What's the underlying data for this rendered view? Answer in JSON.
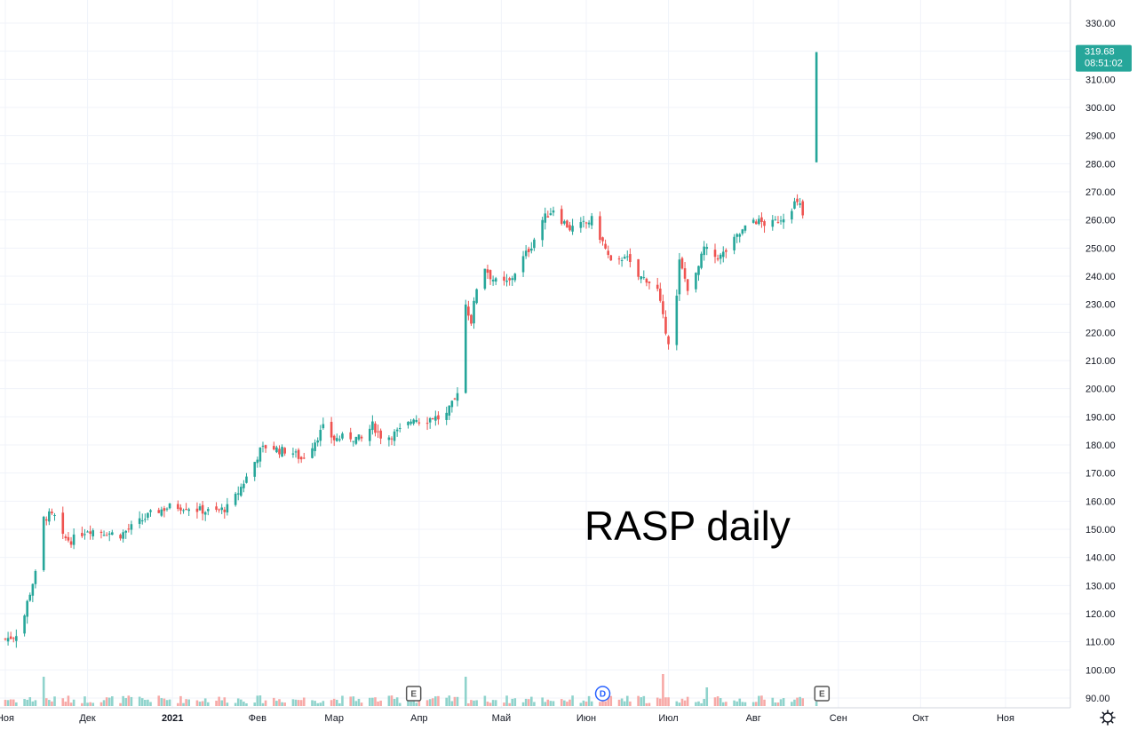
{
  "chart_data": {
    "type": "candlestick",
    "annotation": "RASP daily",
    "colors": {
      "up": "#26a69a",
      "down": "#ef5350",
      "up_volume": "#8fd3cc",
      "down_volume": "#f7a9a7",
      "grid": "#f0f3fa",
      "axis_line": "#d1d4dc",
      "price_label_bg": "#26a69a",
      "earnings_badge": "#555555",
      "dividend_badge": "#2962ff"
    },
    "price_axis": {
      "ylim": [
        87,
        333
      ],
      "ticks": [
        "330.00",
        "320.00",
        "310.00",
        "300.00",
        "290.00",
        "280.00",
        "270.00",
        "260.00",
        "250.00",
        "240.00",
        "230.00",
        "220.00",
        "210.00",
        "200.00",
        "190.00",
        "180.00",
        "170.00",
        "160.00",
        "150.00",
        "140.00",
        "130.00",
        "120.00",
        "110.00",
        "100.00",
        "90.00"
      ]
    },
    "time_axis": {
      "labels": [
        {
          "text": "Ноя",
          "day": 0,
          "bold": false
        },
        {
          "text": "Дек",
          "day": 30,
          "bold": false
        },
        {
          "text": "2021",
          "day": 61,
          "bold": true
        },
        {
          "text": "Фев",
          "day": 92,
          "bold": false
        },
        {
          "text": "Мар",
          "day": 120,
          "bold": false
        },
        {
          "text": "Апр",
          "day": 151,
          "bold": false
        },
        {
          "text": "Май",
          "day": 181,
          "bold": false
        },
        {
          "text": "Июн",
          "day": 212,
          "bold": false
        },
        {
          "text": "Июл",
          "day": 242,
          "bold": false
        },
        {
          "text": "Авг",
          "day": 273,
          "bold": false
        },
        {
          "text": "Сен",
          "day": 304,
          "bold": false
        },
        {
          "text": "Окт",
          "day": 334,
          "bold": false
        },
        {
          "text": "Ноя",
          "day": 365,
          "bold": false
        }
      ]
    },
    "last_price": {
      "value": "319.68",
      "time": "08:51:02",
      "price": 319.68
    },
    "badges": [
      {
        "letter": "E",
        "day": 149,
        "kind": "earnings"
      },
      {
        "letter": "D",
        "day": 218,
        "kind": "dividend"
      },
      {
        "letter": "E",
        "day": 298,
        "kind": "earnings"
      }
    ],
    "anchors": [
      [
        0,
        111
      ],
      [
        3,
        112
      ],
      [
        6,
        115
      ],
      [
        8,
        124
      ],
      [
        10,
        131
      ],
      [
        12,
        137
      ],
      [
        13,
        153
      ],
      [
        16,
        155
      ],
      [
        19,
        154
      ],
      [
        21,
        147
      ],
      [
        24,
        146
      ],
      [
        27,
        148
      ],
      [
        30,
        150
      ],
      [
        36,
        149
      ],
      [
        42,
        148
      ],
      [
        48,
        152
      ],
      [
        54,
        156
      ],
      [
        60,
        158
      ],
      [
        66,
        158
      ],
      [
        70,
        157
      ],
      [
        76,
        156
      ],
      [
        82,
        158
      ],
      [
        86,
        165
      ],
      [
        90,
        172
      ],
      [
        93,
        178
      ],
      [
        96,
        180
      ],
      [
        100,
        178
      ],
      [
        104,
        178
      ],
      [
        108,
        175
      ],
      [
        112,
        180
      ],
      [
        116,
        186
      ],
      [
        120,
        182
      ],
      [
        125,
        183
      ],
      [
        130,
        182
      ],
      [
        134,
        187
      ],
      [
        138,
        182
      ],
      [
        142,
        184
      ],
      [
        146,
        186
      ],
      [
        149,
        190
      ],
      [
        152,
        188
      ],
      [
        156,
        190
      ],
      [
        160,
        189
      ],
      [
        164,
        196
      ],
      [
        166,
        203
      ],
      [
        168,
        230
      ],
      [
        170,
        224
      ],
      [
        172,
        236
      ],
      [
        174,
        245
      ],
      [
        177,
        240
      ],
      [
        180,
        237
      ],
      [
        184,
        238
      ],
      [
        188,
        245
      ],
      [
        192,
        251
      ],
      [
        196,
        260
      ],
      [
        200,
        264
      ],
      [
        203,
        260
      ],
      [
        206,
        257
      ],
      [
        210,
        258
      ],
      [
        214,
        260
      ],
      [
        218,
        252
      ],
      [
        222,
        242
      ],
      [
        226,
        248
      ],
      [
        230,
        240
      ],
      [
        234,
        239
      ],
      [
        238,
        235
      ],
      [
        240,
        225
      ],
      [
        242,
        217
      ],
      [
        244,
        220
      ],
      [
        246,
        245
      ],
      [
        249,
        236
      ],
      [
        252,
        240
      ],
      [
        255,
        250
      ],
      [
        258,
        247
      ],
      [
        261,
        247
      ],
      [
        264,
        250
      ],
      [
        267,
        254
      ],
      [
        270,
        257
      ],
      [
        273,
        260
      ],
      [
        276,
        259
      ],
      [
        279,
        258
      ],
      [
        282,
        260
      ],
      [
        285,
        262
      ],
      [
        288,
        266
      ],
      [
        290,
        265
      ],
      [
        292,
        258
      ]
    ],
    "last_candle": {
      "day": 296,
      "open": 280.5,
      "high": 319.68,
      "low": 280.5,
      "close": 319.68
    },
    "volume_spikes": [
      [
        12,
        1.0
      ],
      [
        168,
        0.55
      ],
      [
        174,
        0.45
      ],
      [
        240,
        0.6
      ],
      [
        256,
        0.35
      ],
      [
        14,
        0.55
      ]
    ]
  }
}
